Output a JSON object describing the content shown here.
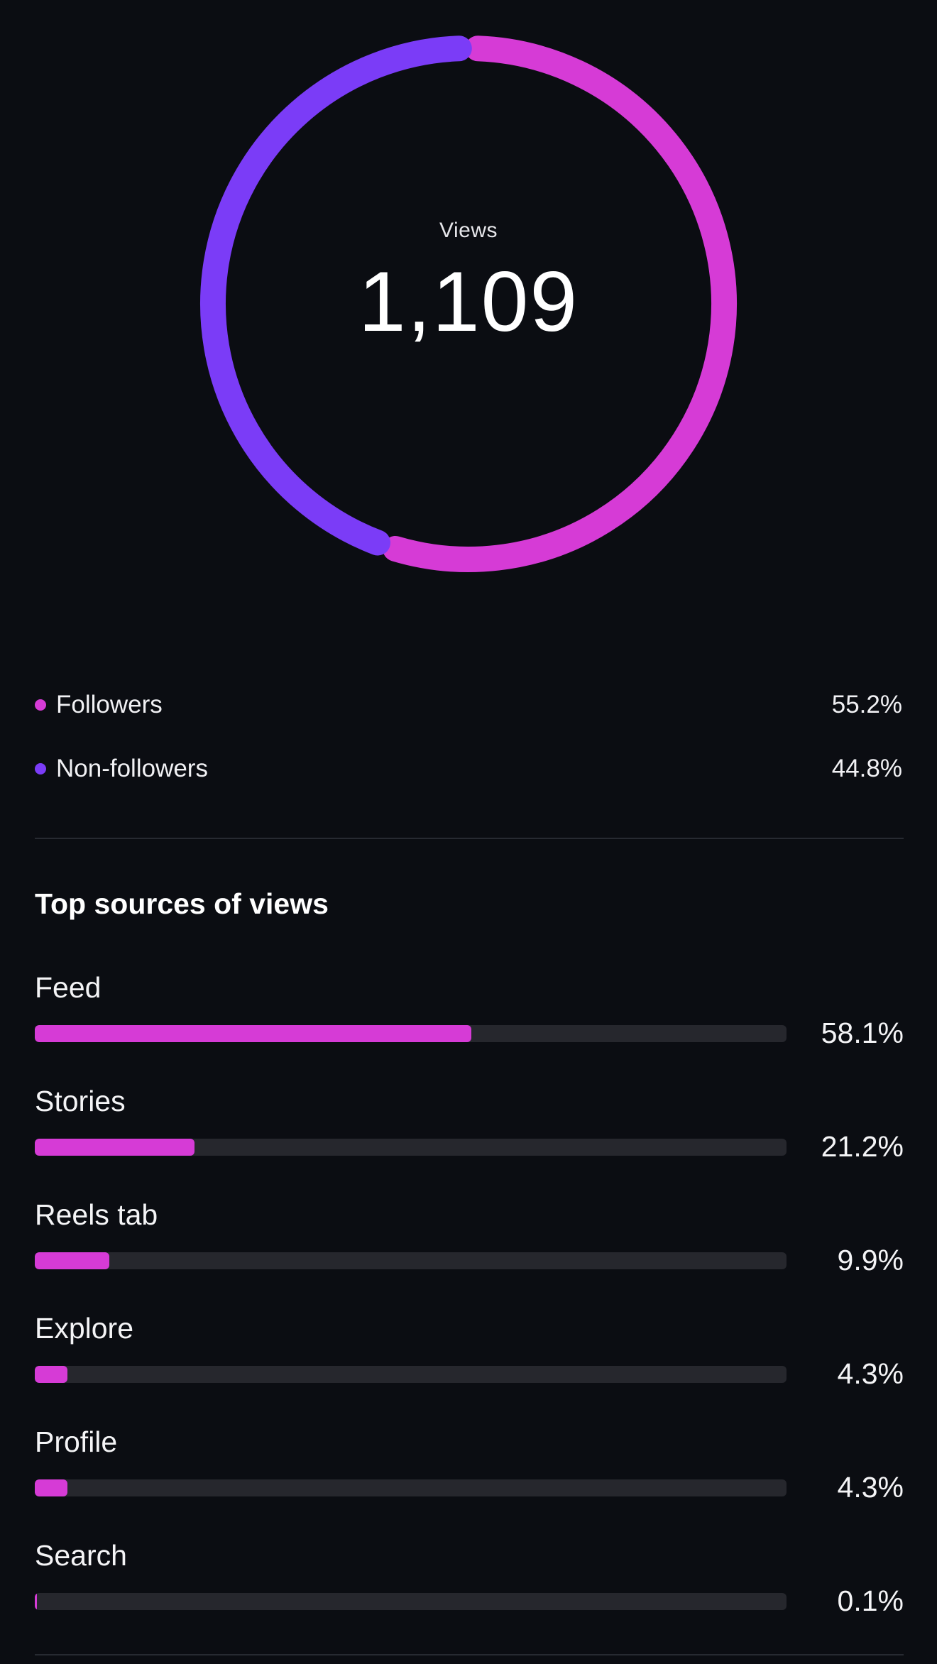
{
  "views": {
    "label": "Views",
    "total": "1,109"
  },
  "audience": [
    {
      "name": "Followers",
      "value": "55.2%",
      "fraction": 0.552,
      "color": "#d63bd6"
    },
    {
      "name": "Non-followers",
      "value": "44.8%",
      "fraction": 0.448,
      "color": "#7b3cf7"
    }
  ],
  "top_sources": {
    "title": "Top sources of views",
    "items": [
      {
        "name": "Feed",
        "value": "58.1%",
        "fraction": 0.581
      },
      {
        "name": "Stories",
        "value": "21.2%",
        "fraction": 0.212
      },
      {
        "name": "Reels tab",
        "value": "9.9%",
        "fraction": 0.099
      },
      {
        "name": "Explore",
        "value": "4.3%",
        "fraction": 0.043
      },
      {
        "name": "Profile",
        "value": "4.3%",
        "fraction": 0.043
      },
      {
        "name": "Search",
        "value": "0.1%",
        "fraction": 0.001
      }
    ]
  },
  "colors": {
    "background": "#0b0d12",
    "followers": "#d63bd6",
    "non_followers": "#7b3cf7",
    "track": "#26272d",
    "bar_fill": "#d63bd6"
  }
}
